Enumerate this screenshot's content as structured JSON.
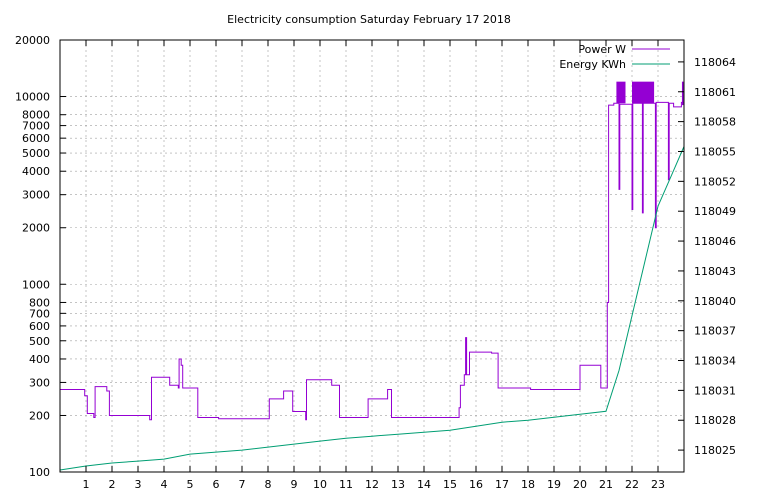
{
  "chart_data": {
    "type": "line",
    "title": "Electricity consumption Saturday February 17 2018",
    "xlabel": "",
    "ylabel": "",
    "y2label": "",
    "grid": true,
    "legend_position": "top-right",
    "x_range": [
      0,
      24
    ],
    "x_ticks": [
      1,
      2,
      3,
      4,
      5,
      6,
      7,
      8,
      9,
      10,
      11,
      12,
      13,
      14,
      15,
      16,
      17,
      18,
      19,
      20,
      21,
      22,
      23
    ],
    "y_scale": "log",
    "y_range": [
      100,
      20000
    ],
    "y_ticks": [
      100,
      200,
      300,
      400,
      500,
      600,
      700,
      800,
      1000,
      2000,
      3000,
      4000,
      5000,
      6000,
      7000,
      8000,
      10000,
      20000
    ],
    "y2_range": [
      118022.8,
      118066.2
    ],
    "y2_ticks": [
      118025,
      118028,
      118031,
      118034,
      118037,
      118040,
      118043,
      118046,
      118049,
      118052,
      118055,
      118058,
      118061,
      118064
    ],
    "series": [
      {
        "name": "Power W",
        "axis": "y",
        "color": "#9400D3",
        "points": [
          [
            0.0,
            275
          ],
          [
            0.95,
            275
          ],
          [
            0.95,
            255
          ],
          [
            1.05,
            255
          ],
          [
            1.05,
            205
          ],
          [
            1.3,
            205
          ],
          [
            1.3,
            195
          ],
          [
            1.35,
            195
          ],
          [
            1.35,
            285
          ],
          [
            1.8,
            285
          ],
          [
            1.8,
            270
          ],
          [
            1.9,
            270
          ],
          [
            1.9,
            200
          ],
          [
            3.45,
            200
          ],
          [
            3.45,
            190
          ],
          [
            3.52,
            190
          ],
          [
            3.52,
            320
          ],
          [
            4.22,
            320
          ],
          [
            4.22,
            290
          ],
          [
            4.55,
            290
          ],
          [
            4.55,
            280
          ],
          [
            4.58,
            280
          ],
          [
            4.58,
            400
          ],
          [
            4.66,
            400
          ],
          [
            4.66,
            370
          ],
          [
            4.72,
            370
          ],
          [
            4.72,
            280
          ],
          [
            5.3,
            280
          ],
          [
            5.3,
            195
          ],
          [
            6.1,
            195
          ],
          [
            6.1,
            192
          ],
          [
            8.05,
            192
          ],
          [
            8.05,
            245
          ],
          [
            8.6,
            245
          ],
          [
            8.6,
            270
          ],
          [
            8.95,
            270
          ],
          [
            8.95,
            210
          ],
          [
            9.45,
            210
          ],
          [
            9.45,
            190
          ],
          [
            9.48,
            190
          ],
          [
            9.48,
            310
          ],
          [
            10.45,
            310
          ],
          [
            10.45,
            290
          ],
          [
            10.75,
            290
          ],
          [
            10.75,
            195
          ],
          [
            11.85,
            195
          ],
          [
            11.85,
            245
          ],
          [
            12.6,
            245
          ],
          [
            12.6,
            275
          ],
          [
            12.75,
            275
          ],
          [
            12.75,
            195
          ],
          [
            15.35,
            195
          ],
          [
            15.35,
            220
          ],
          [
            15.4,
            220
          ],
          [
            15.4,
            290
          ],
          [
            15.55,
            290
          ],
          [
            15.55,
            330
          ],
          [
            15.6,
            330
          ],
          [
            15.6,
            520
          ],
          [
            15.64,
            520
          ],
          [
            15.64,
            330
          ],
          [
            15.75,
            330
          ],
          [
            15.75,
            435
          ],
          [
            16.6,
            435
          ],
          [
            16.6,
            430
          ],
          [
            16.85,
            430
          ],
          [
            16.85,
            280
          ],
          [
            18.1,
            280
          ],
          [
            18.1,
            275
          ],
          [
            20.0,
            275
          ],
          [
            20.0,
            370
          ],
          [
            20.8,
            370
          ],
          [
            20.8,
            280
          ],
          [
            21.05,
            280
          ],
          [
            21.05,
            800
          ],
          [
            21.1,
            800
          ],
          [
            21.1,
            9000
          ],
          [
            21.3,
            9000
          ],
          [
            21.3,
            9200
          ],
          [
            21.5,
            9200
          ],
          [
            21.5,
            3200
          ],
          [
            21.53,
            3200
          ],
          [
            21.53,
            9100
          ],
          [
            22.0,
            9100
          ],
          [
            22.0,
            2500
          ],
          [
            22.03,
            2500
          ],
          [
            22.03,
            9200
          ],
          [
            22.4,
            9200
          ],
          [
            22.4,
            2400
          ],
          [
            22.43,
            2400
          ],
          [
            22.43,
            9200
          ],
          [
            22.9,
            9200
          ],
          [
            22.9,
            2000
          ],
          [
            22.93,
            2000
          ],
          [
            22.93,
            9300
          ],
          [
            23.4,
            9300
          ],
          [
            23.4,
            3600
          ],
          [
            23.43,
            3600
          ],
          [
            23.43,
            9200
          ],
          [
            23.6,
            9200
          ],
          [
            23.6,
            8800
          ],
          [
            23.9,
            8800
          ],
          [
            23.9,
            9300
          ],
          [
            24.0,
            9300
          ]
        ],
        "bands": [
          {
            "x": [
              21.4,
              21.75
            ],
            "y": [
              9200,
              12000
            ]
          },
          {
            "x": [
              22.0,
              22.85
            ],
            "y": [
              9200,
              12000
            ]
          }
        ],
        "spikes": [
          [
            23.95,
            12000
          ]
        ]
      },
      {
        "name": "Energy KWh",
        "axis": "y2",
        "color": "#009E73",
        "points": [
          [
            0,
            118023.0
          ],
          [
            1,
            118023.4
          ],
          [
            2,
            118023.7
          ],
          [
            3,
            118023.9
          ],
          [
            4,
            118024.1
          ],
          [
            5,
            118024.6
          ],
          [
            6,
            118024.8
          ],
          [
            7,
            118025.0
          ],
          [
            8,
            118025.3
          ],
          [
            9,
            118025.6
          ],
          [
            10,
            118025.9
          ],
          [
            11,
            118026.2
          ],
          [
            12,
            118026.4
          ],
          [
            13,
            118026.6
          ],
          [
            14,
            118026.8
          ],
          [
            15,
            118027.0
          ],
          [
            16,
            118027.4
          ],
          [
            17,
            118027.8
          ],
          [
            18,
            118028.0
          ],
          [
            19,
            118028.3
          ],
          [
            20,
            118028.6
          ],
          [
            21,
            118028.9
          ],
          [
            21.5,
            118033.0
          ],
          [
            22,
            118038.5
          ],
          [
            22.5,
            118044.0
          ],
          [
            23,
            118049.5
          ],
          [
            23.5,
            118052.5
          ],
          [
            24,
            118055.5
          ]
        ]
      }
    ]
  }
}
